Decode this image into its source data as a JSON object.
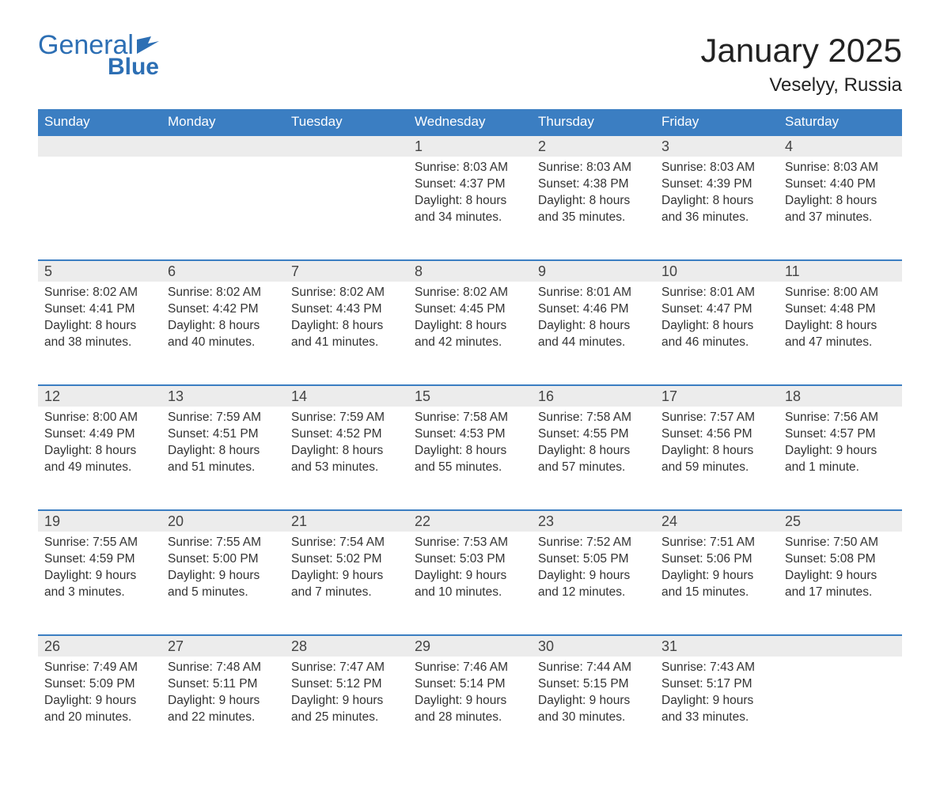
{
  "logo": {
    "text_general": "General",
    "text_blue": "Blue",
    "color": "#2d6fb4"
  },
  "title": "January 2025",
  "location": "Veselyy, Russia",
  "colors": {
    "header_bg": "#3b7ec2",
    "header_text": "#ffffff",
    "daynum_bg": "#ececec",
    "daynum_border": "#3b7ec2",
    "body_text": "#333333",
    "page_bg": "#ffffff"
  },
  "weekdays": [
    "Sunday",
    "Monday",
    "Tuesday",
    "Wednesday",
    "Thursday",
    "Friday",
    "Saturday"
  ],
  "weeks": [
    [
      null,
      null,
      null,
      {
        "n": "1",
        "sunrise": "8:03 AM",
        "sunset": "4:37 PM",
        "daylight": "8 hours and 34 minutes."
      },
      {
        "n": "2",
        "sunrise": "8:03 AM",
        "sunset": "4:38 PM",
        "daylight": "8 hours and 35 minutes."
      },
      {
        "n": "3",
        "sunrise": "8:03 AM",
        "sunset": "4:39 PM",
        "daylight": "8 hours and 36 minutes."
      },
      {
        "n": "4",
        "sunrise": "8:03 AM",
        "sunset": "4:40 PM",
        "daylight": "8 hours and 37 minutes."
      }
    ],
    [
      {
        "n": "5",
        "sunrise": "8:02 AM",
        "sunset": "4:41 PM",
        "daylight": "8 hours and 38 minutes."
      },
      {
        "n": "6",
        "sunrise": "8:02 AM",
        "sunset": "4:42 PM",
        "daylight": "8 hours and 40 minutes."
      },
      {
        "n": "7",
        "sunrise": "8:02 AM",
        "sunset": "4:43 PM",
        "daylight": "8 hours and 41 minutes."
      },
      {
        "n": "8",
        "sunrise": "8:02 AM",
        "sunset": "4:45 PM",
        "daylight": "8 hours and 42 minutes."
      },
      {
        "n": "9",
        "sunrise": "8:01 AM",
        "sunset": "4:46 PM",
        "daylight": "8 hours and 44 minutes."
      },
      {
        "n": "10",
        "sunrise": "8:01 AM",
        "sunset": "4:47 PM",
        "daylight": "8 hours and 46 minutes."
      },
      {
        "n": "11",
        "sunrise": "8:00 AM",
        "sunset": "4:48 PM",
        "daylight": "8 hours and 47 minutes."
      }
    ],
    [
      {
        "n": "12",
        "sunrise": "8:00 AM",
        "sunset": "4:49 PM",
        "daylight": "8 hours and 49 minutes."
      },
      {
        "n": "13",
        "sunrise": "7:59 AM",
        "sunset": "4:51 PM",
        "daylight": "8 hours and 51 minutes."
      },
      {
        "n": "14",
        "sunrise": "7:59 AM",
        "sunset": "4:52 PM",
        "daylight": "8 hours and 53 minutes."
      },
      {
        "n": "15",
        "sunrise": "7:58 AM",
        "sunset": "4:53 PM",
        "daylight": "8 hours and 55 minutes."
      },
      {
        "n": "16",
        "sunrise": "7:58 AM",
        "sunset": "4:55 PM",
        "daylight": "8 hours and 57 minutes."
      },
      {
        "n": "17",
        "sunrise": "7:57 AM",
        "sunset": "4:56 PM",
        "daylight": "8 hours and 59 minutes."
      },
      {
        "n": "18",
        "sunrise": "7:56 AM",
        "sunset": "4:57 PM",
        "daylight": "9 hours and 1 minute."
      }
    ],
    [
      {
        "n": "19",
        "sunrise": "7:55 AM",
        "sunset": "4:59 PM",
        "daylight": "9 hours and 3 minutes."
      },
      {
        "n": "20",
        "sunrise": "7:55 AM",
        "sunset": "5:00 PM",
        "daylight": "9 hours and 5 minutes."
      },
      {
        "n": "21",
        "sunrise": "7:54 AM",
        "sunset": "5:02 PM",
        "daylight": "9 hours and 7 minutes."
      },
      {
        "n": "22",
        "sunrise": "7:53 AM",
        "sunset": "5:03 PM",
        "daylight": "9 hours and 10 minutes."
      },
      {
        "n": "23",
        "sunrise": "7:52 AM",
        "sunset": "5:05 PM",
        "daylight": "9 hours and 12 minutes."
      },
      {
        "n": "24",
        "sunrise": "7:51 AM",
        "sunset": "5:06 PM",
        "daylight": "9 hours and 15 minutes."
      },
      {
        "n": "25",
        "sunrise": "7:50 AM",
        "sunset": "5:08 PM",
        "daylight": "9 hours and 17 minutes."
      }
    ],
    [
      {
        "n": "26",
        "sunrise": "7:49 AM",
        "sunset": "5:09 PM",
        "daylight": "9 hours and 20 minutes."
      },
      {
        "n": "27",
        "sunrise": "7:48 AM",
        "sunset": "5:11 PM",
        "daylight": "9 hours and 22 minutes."
      },
      {
        "n": "28",
        "sunrise": "7:47 AM",
        "sunset": "5:12 PM",
        "daylight": "9 hours and 25 minutes."
      },
      {
        "n": "29",
        "sunrise": "7:46 AM",
        "sunset": "5:14 PM",
        "daylight": "9 hours and 28 minutes."
      },
      {
        "n": "30",
        "sunrise": "7:44 AM",
        "sunset": "5:15 PM",
        "daylight": "9 hours and 30 minutes."
      },
      {
        "n": "31",
        "sunrise": "7:43 AM",
        "sunset": "5:17 PM",
        "daylight": "9 hours and 33 minutes."
      },
      null
    ]
  ],
  "labels": {
    "sunrise": "Sunrise: ",
    "sunset": "Sunset: ",
    "daylight": "Daylight: "
  }
}
